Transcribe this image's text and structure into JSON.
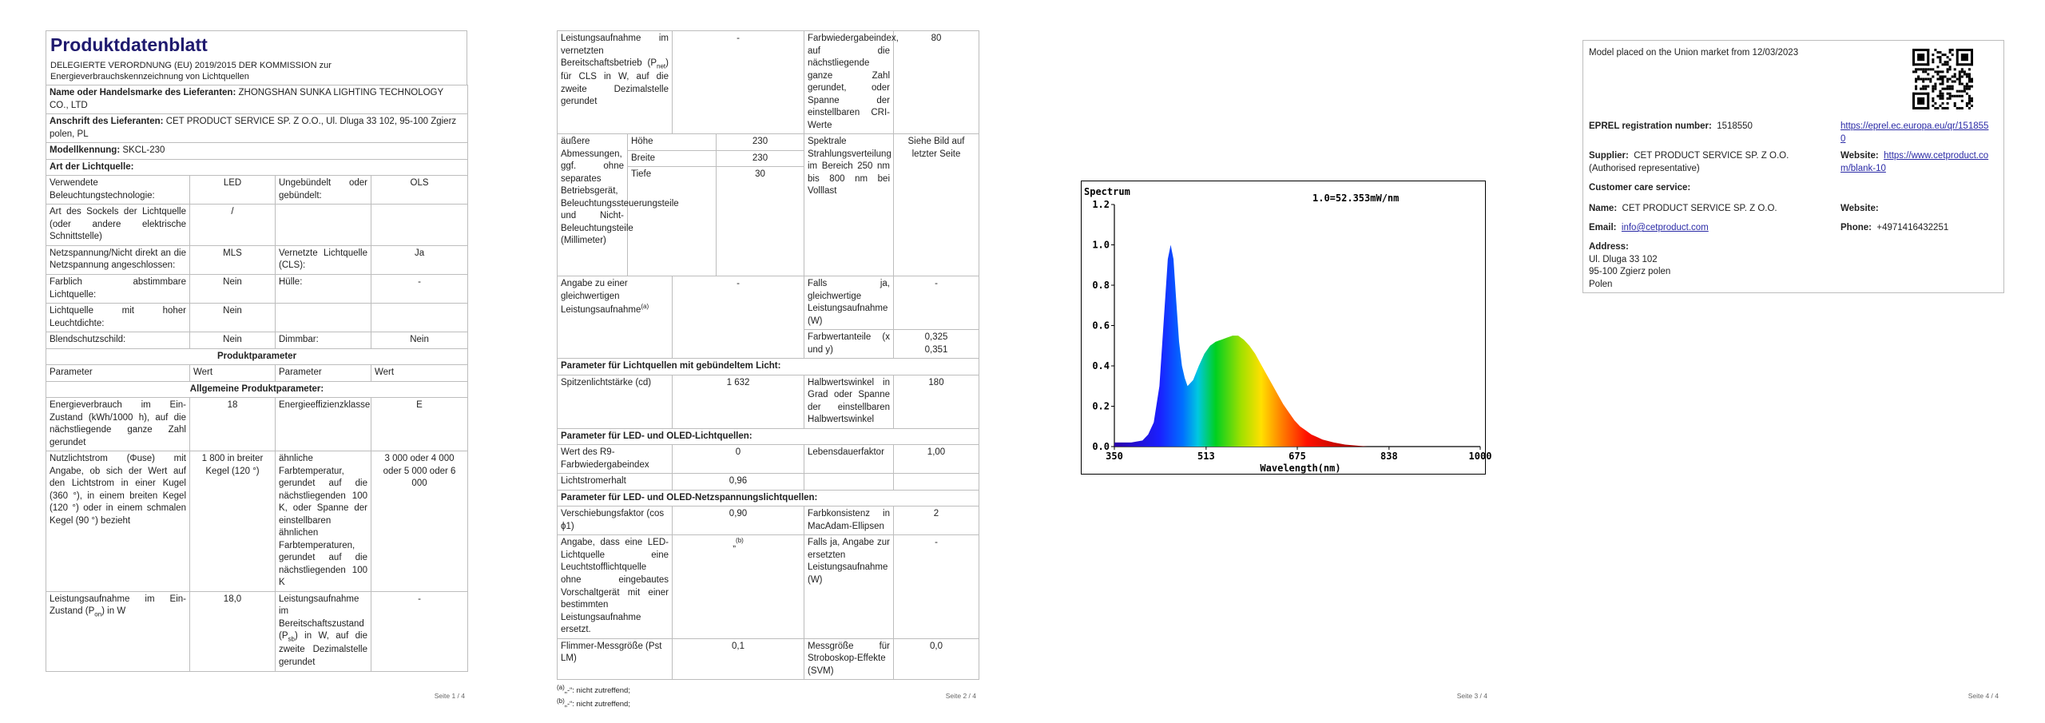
{
  "page1": {
    "title": "Produktdatenblatt",
    "subtitle": "DELEGIERTE VERORDNUNG (EU) 2019/2015 DER KOMMISSION zur Energieverbrauchskennzeichnung von Lichtquellen",
    "supplier_name_label": "Name oder Handelsmarke des Lieferanten:",
    "supplier_name_value": "ZHONGSHAN SUNKA LIGHTING TECHNOLOGY CO., LTD",
    "supplier_address_label": "Anschrift des Lieferanten:",
    "supplier_address_value": "CET PRODUCT SERVICE SP. Z O.O., Ul. Dluga 33 102, 95-100 Zgierz polen, PL",
    "model_label": "Modellkennung:",
    "model_value": "SKCL-230",
    "type_heading": "Art der Lichtquelle:",
    "r1a": "Verwendete Beleuchtungstechnologie:",
    "r1b": "LED",
    "r1c": "Ungebündelt oder gebündelt:",
    "r1d": "OLS",
    "r2a": "Art des Sockels der Lichtquelle (oder andere elektrische Schnittstelle)",
    "r2b": "/",
    "r3a": "Netzspannung/Nicht direkt an die Netzspannung angeschlossen:",
    "r3b": "MLS",
    "r3c": "Vernetzte Lichtquelle (CLS):",
    "r3d": "Ja",
    "r4a": "Farblich abstimmbare Lichtquelle:",
    "r4b": "Nein",
    "r4c": "Hülle:",
    "r4d": "-",
    "r5a": "Lichtquelle mit hoher Leuchtdichte:",
    "r5b": "Nein",
    "r6a": "Blendschutzschild:",
    "r6b": "Nein",
    "r6c": "Dimmbar:",
    "r6d": "Nein",
    "params_heading": "Produktparameter",
    "col_param": "Parameter",
    "col_value": "Wert",
    "general_heading": "Allgemeine Produktparameter:",
    "g1a": "Energieverbrauch im Ein-Zustand (kWh/1000 h), auf die nächstliegende ganze Zahl gerundet",
    "g1b": "18",
    "g1c": "Energieeffizienzklasse",
    "g1d": "E",
    "g2a": "Nutzlichtstrom (Φuse) mit Angabe, ob sich der Wert auf den Lichtstrom in einer Kugel (360 °), in einem breiten Kegel (120 °) oder in einem schmalen Kegel (90 °) bezieht",
    "g2b": "1 800 in breiter Kegel (120 °)",
    "g2c": "ähnliche Farbtemperatur, gerundet auf die nächstliegenden 100 K, oder Spanne der einstellbaren ähnlichen Farbtemperaturen, gerundet auf die nächstliegenden 100 K",
    "g2d": "3 000 oder 4 000 oder 5 000 oder 6 000",
    "g3a1": "Leistungsaufnahme im Ein-Zustand (P",
    "g3a_sub": "on",
    "g3a2": ") in W",
    "g3b": "18,0",
    "g3c1": "Leistungsaufnahme im Bereitschaftszustand (P",
    "g3c_sub": "sb",
    "g3c2": ") in W, auf die zweite Dezimalstelle gerundet",
    "g3d": "-",
    "page_number": "Seite 1 / 4"
  },
  "page2": {
    "n1a1": "Leistungsaufnahme im vernetzten Bereitschaftsbetrieb (P",
    "n1a_sub": "net",
    "n1a2": ") für CLS in W, auf die zweite Dezimalstelle gerundet",
    "n1b": "-",
    "n1c": "Farbwiedergabeindex, auf die nächstliegende ganze Zahl gerundet, oder Spanne der einstellbaren CRI-Werte",
    "n1d": "80",
    "dim_label": "äußere Abmessungen, ggf. ohne separates Betriebsgerät, Beleuchtungssteuerungsteile und Nicht-Beleuchtungsteile (Millimeter)",
    "dim_h_label": "Höhe",
    "dim_h": "230",
    "dim_w_label": "Breite",
    "dim_w": "230",
    "dim_d_label": "Tiefe",
    "dim_d": "30",
    "spec_label": "Spektrale Strahlungsverteilung im Bereich 250 nm bis 800 nm bei Volllast",
    "spec_value": "Siehe Bild auf letzter Seite",
    "eq_label": "Angabe zu einer gleichwertigen Leistungsaufnahme",
    "eq_sup": "(a)",
    "eq_value": "-",
    "eq2_label": "Falls ja, gleichwertige Leistungsaufnahme (W)",
    "eq2_value": "-",
    "chroma_label": "Farbwertanteile (x und y)",
    "chroma_x": "0,325",
    "chroma_y": "0,351",
    "directional_heading": "Parameter für Lichtquellen mit gebündeltem Licht:",
    "peak_label": "Spitzenlichtstärke (cd)",
    "peak_value": "1 632",
    "beam_label": "Halbwertswinkel in Grad oder Spanne der einstellbaren Halbwertswinkel",
    "beam_value": "180",
    "led_heading": "Parameter für LED- und OLED-Lichtquellen:",
    "r9_label": "Wert des R9-Farbwiedergabeindex",
    "r9_value": "0",
    "life_label": "Lebensdauerfaktor",
    "life_value": "1,00",
    "maint_label": "Lichtstromerhalt",
    "maint_value": "0,96",
    "mains_heading": "Parameter für LED- und OLED-Netzspannungslichtquellen:",
    "dpf_label": "Verschiebungsfaktor (cos ϕ1)",
    "dpf_value": "0,90",
    "consist_label": "Farbkonsistenz in MacAdam-Ellipsen",
    "consist_value": "2",
    "repl_label": "Angabe, dass eine LED-Lichtquelle eine Leuchtstofflichtquelle ohne eingebautes Vorschaltgerät mit einer bestimmten Leistungsaufnahme ersetzt.",
    "repl_value": "„",
    "repl_sup": "(b)",
    "repl2_label": "Falls ja, Angabe zur ersetzten Leistungsaufnahme (W)",
    "repl2_value": "-",
    "flicker_label": "Flimmer-Messgröße (Pst LM)",
    "flicker_value": "0,1",
    "strobo_label": "Messgröße für Stroboskop-Effekte (SVM)",
    "strobo_value": "0,0",
    "foot_a_sup": "(a)",
    "foot_a": "„-“: nicht zutreffend;",
    "foot_b_sup": "(b)",
    "foot_b": "„-“: nicht zutreffend;",
    "page_number": "Seite 2 / 4"
  },
  "page3": {
    "chart_data": {
      "type": "area",
      "title": "Spectrum",
      "annotation": "1.0=52.353mW/nm",
      "xlabel": "Wavelength(nm)",
      "ylabel": "",
      "xlim": [
        350,
        1000
      ],
      "ylim": [
        0,
        1.2
      ],
      "x_ticks": [
        "350",
        "513",
        "675",
        "838",
        "1000"
      ],
      "y_ticks": [
        "0.0",
        "0.2",
        "0.4",
        "0.6",
        "0.8",
        "1.0",
        "1.2"
      ],
      "x": [
        350,
        380,
        400,
        410,
        420,
        430,
        440,
        445,
        450,
        455,
        460,
        465,
        470,
        475,
        480,
        490,
        500,
        510,
        520,
        530,
        540,
        550,
        560,
        570,
        580,
        590,
        600,
        610,
        620,
        630,
        640,
        650,
        660,
        670,
        680,
        690,
        700,
        720,
        740,
        760,
        780,
        800
      ],
      "y": [
        0.02,
        0.02,
        0.03,
        0.06,
        0.12,
        0.3,
        0.72,
        0.93,
        1.0,
        0.93,
        0.72,
        0.52,
        0.4,
        0.34,
        0.3,
        0.33,
        0.4,
        0.46,
        0.5,
        0.52,
        0.53,
        0.54,
        0.55,
        0.55,
        0.53,
        0.5,
        0.46,
        0.41,
        0.36,
        0.31,
        0.26,
        0.21,
        0.17,
        0.13,
        0.1,
        0.08,
        0.06,
        0.035,
        0.02,
        0.01,
        0.005,
        0.0
      ],
      "grid": false
    },
    "page_number": "Seite 3 / 4"
  },
  "page4": {
    "placed": "Model placed on the Union market from 12/03/2023",
    "eprel_label": "EPREL registration number:",
    "eprel_value": "1518550",
    "eprel_link": "https://eprel.ec.europa.eu/qr/1518550",
    "supplier_label": "Supplier:",
    "supplier_value": "CET PRODUCT SERVICE SP. Z O.O. (Authorised representative)",
    "website_label": "Website:",
    "website_value": "https://www.cetproduct.com/blank-10",
    "care_heading": "Customer care service:",
    "name_label": "Name:",
    "name_value": "CET PRODUCT SERVICE SP. Z O.O.",
    "website2_label": "Website:",
    "email_label": "Email:",
    "email_value": "info@cetproduct.com",
    "phone_label": "Phone:",
    "phone_value": "+4971416432251",
    "address_label": "Address:",
    "address_line1": "Ul. Dluga 33 102",
    "address_line2": "95-100 Zgierz polen",
    "address_line3": "Polen",
    "page_number": "Seite 4 / 4"
  }
}
